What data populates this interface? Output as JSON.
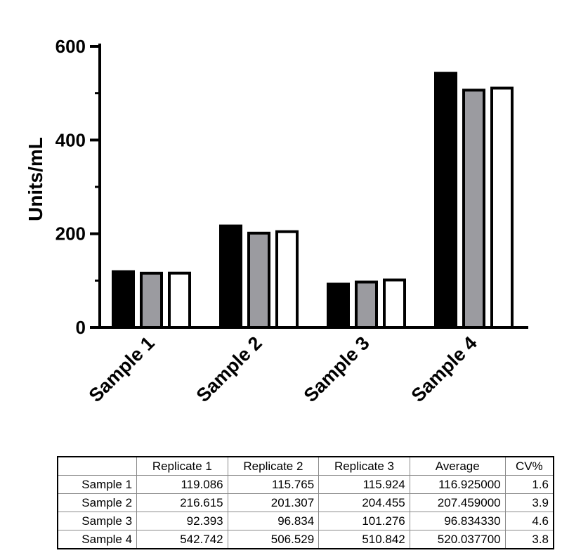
{
  "chart_data": {
    "type": "bar",
    "categories": [
      "Sample 1",
      "Sample 2",
      "Sample 3",
      "Sample 4"
    ],
    "series": [
      {
        "values": [
          119.086,
          216.615,
          92.393,
          542.742
        ],
        "color": "#000000"
      },
      {
        "values": [
          115.765,
          201.307,
          96.834,
          506.529
        ],
        "color": "#9b9ba0"
      },
      {
        "values": [
          115.924,
          204.455,
          101.276,
          510.842
        ],
        "color": "#ffffff"
      }
    ],
    "ylabel": "Units/mL",
    "ylim": [
      0,
      600
    ],
    "yticks": [
      "0",
      "200",
      "400",
      "600"
    ],
    "grid": false
  },
  "table": {
    "headers": [
      "",
      "Replicate 1",
      "Replicate 2",
      "Replicate 3",
      "Average",
      "CV%"
    ],
    "rows": [
      [
        "Sample 1",
        "119.086",
        "115.765",
        "115.924",
        "116.925000",
        "1.6"
      ],
      [
        "Sample 2",
        "216.615",
        "201.307",
        "204.455",
        "207.459000",
        "3.9"
      ],
      [
        "Sample 3",
        "92.393",
        "96.834",
        "101.276",
        "96.834330",
        "4.6"
      ],
      [
        "Sample 4",
        "542.742",
        "506.529",
        "510.842",
        "520.037700",
        "3.8"
      ]
    ]
  }
}
